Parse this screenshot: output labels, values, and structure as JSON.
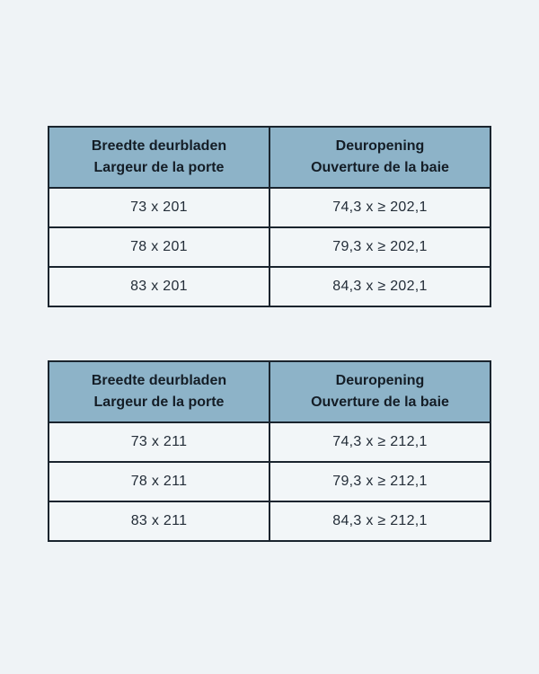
{
  "page": {
    "background": "#eff3f6"
  },
  "colors": {
    "header_bg": "#8db3c8",
    "border": "#1a242e",
    "cell_bg": "#f2f6f8",
    "header_text": "#141d26",
    "cell_text": "#232d38"
  },
  "tables": [
    {
      "headers": [
        {
          "line1": "Breedte deurbladen",
          "line2": "Largeur de la porte"
        },
        {
          "line1": "Deuropening",
          "line2": "Ouverture de la baie"
        }
      ],
      "rows": [
        [
          "73 x 201",
          "74,3 x ≥ 202,1"
        ],
        [
          "78 x 201",
          "79,3 x ≥ 202,1"
        ],
        [
          "83 x 201",
          "84,3 x ≥ 202,1"
        ]
      ]
    },
    {
      "headers": [
        {
          "line1": "Breedte deurbladen",
          "line2": "Largeur de la porte"
        },
        {
          "line1": "Deuropening",
          "line2": "Ouverture de la baie"
        }
      ],
      "rows": [
        [
          "73 x 211",
          "74,3 x ≥ 212,1"
        ],
        [
          "78 x 211",
          "79,3 x ≥ 212,1"
        ],
        [
          "83 x 211",
          "84,3 x ≥ 212,1"
        ]
      ]
    }
  ]
}
